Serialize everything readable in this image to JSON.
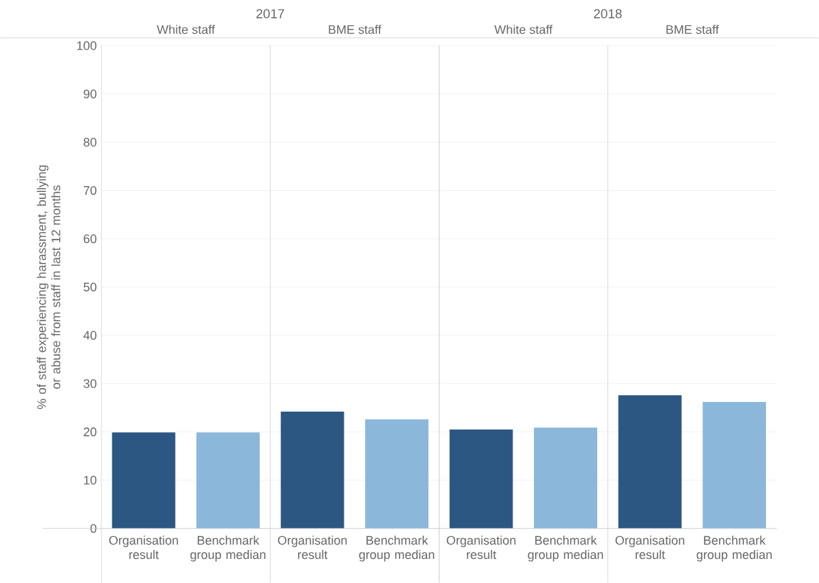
{
  "chart_data": {
    "type": "bar",
    "ylabel": "% of staff experiencing harassment, bullying or abuse from staff in last 12 months",
    "categories": [
      "Organisation result",
      "Benchmark group median",
      "Organisation result",
      "Benchmark group median",
      "Organisation result",
      "Benchmark group median",
      "Organisation result",
      "Benchmark group median"
    ],
    "values": [
      19.9,
      19.9,
      24.2,
      22.6,
      20.5,
      20.9,
      27.6,
      26.2
    ],
    "colors": [
      "#2c5783",
      "#8bb7da",
      "#2c5783",
      "#8bb7da",
      "#2c5783",
      "#8bb7da",
      "#2c5783",
      "#8bb7da"
    ],
    "annotations": [
      "2017",
      "2018",
      "White staff",
      "BME staff",
      "White staff",
      "BME staff"
    ],
    "ylim": [
      0,
      100
    ],
    "yticks": [
      0,
      10,
      20,
      30,
      40,
      50,
      60,
      70,
      80,
      90,
      100
    ],
    "grid": "y"
  }
}
